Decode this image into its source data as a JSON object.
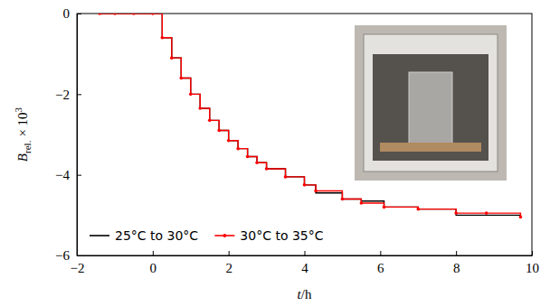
{
  "chart_data": {
    "type": "line",
    "xlabel": [
      "t",
      "/h"
    ],
    "ylabel": [
      "B",
      "rel.",
      "× 10",
      "3"
    ],
    "x": [
      -1.4,
      -1.0,
      -0.5,
      0,
      0.25,
      0.5,
      0.75,
      1.0,
      1.25,
      1.5,
      1.75,
      2.0,
      2.25,
      2.5,
      2.75,
      3.0,
      3.5,
      4.0,
      4.3,
      5.0,
      5.5,
      6.1,
      7.0,
      8.0,
      8.8,
      9.7
    ],
    "series": [
      {
        "name": "25°C to 30°C",
        "color": "#000000",
        "marker": "none",
        "line_style": "step",
        "values": [
          0,
          0,
          0,
          0,
          -0.6,
          -1.1,
          -1.6,
          -2.0,
          -2.35,
          -2.65,
          -2.9,
          -3.15,
          -3.35,
          -3.55,
          -3.7,
          -3.85,
          -4.05,
          -4.25,
          -4.45,
          -4.6,
          -4.65,
          -4.8,
          -4.85,
          -5.0,
          -5.0,
          -5.05
        ]
      },
      {
        "name": "30°C to 35°C",
        "color": "#ff0000",
        "marker": "circle",
        "line_style": "step",
        "values": [
          0,
          0,
          0,
          0,
          -0.6,
          -1.1,
          -1.6,
          -2.0,
          -2.35,
          -2.65,
          -2.9,
          -3.15,
          -3.35,
          -3.55,
          -3.7,
          -3.85,
          -4.05,
          -4.25,
          -4.4,
          -4.6,
          -4.7,
          -4.8,
          -4.85,
          -4.95,
          -4.95,
          -5.05
        ]
      }
    ],
    "xlim": [
      -2,
      10
    ],
    "ylim": [
      -6,
      0
    ],
    "xticks": [
      {
        "value": -2,
        "label": "−2"
      },
      0,
      2,
      4,
      6,
      8,
      10
    ],
    "yticks": [
      {
        "value": -6,
        "label": "−6"
      },
      {
        "value": -4,
        "label": "−4"
      },
      {
        "value": -2,
        "label": "−2"
      },
      0
    ],
    "legend": "lower left",
    "grid": false
  }
}
